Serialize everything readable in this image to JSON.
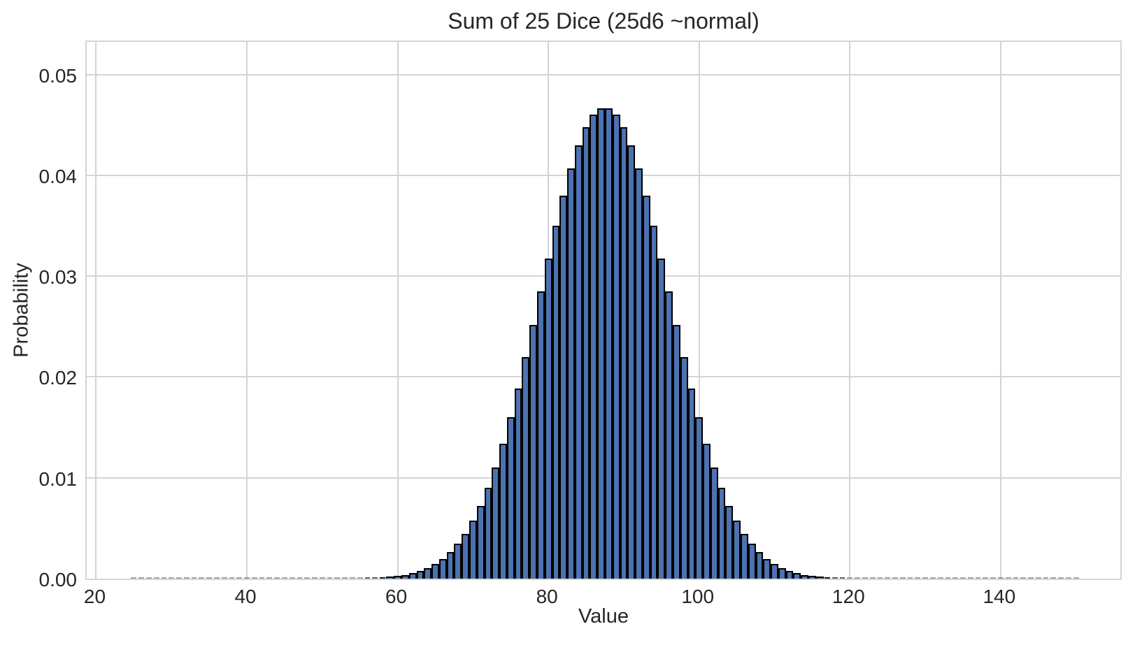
{
  "chart_data": {
    "type": "bar",
    "subtype": "histogram",
    "title": "Sum of 25 Dice (25d6 ~normal)",
    "xlabel": "Value",
    "ylabel": "Probability",
    "x_start": 25,
    "x_end": 150,
    "values": [
      0,
      0,
      0,
      0,
      0,
      0,
      0,
      0,
      0,
      0,
      0,
      0,
      0,
      0,
      0,
      0,
      0,
      0,
      0,
      0,
      0,
      0,
      0,
      0,
      0,
      3e-06,
      5e-06,
      8e-06,
      1.33e-05,
      2.12e-05,
      3.34e-05,
      5.18e-05,
      7.93e-05,
      0.00012,
      0.000178,
      0.000262,
      0.000379,
      0.000541,
      0.000762,
      0.001059,
      0.001452,
      0.001963,
      0.002619,
      0.003445,
      0.00447,
      0.005721,
      0.007222,
      0.008994,
      0.011048,
      0.013389,
      0.016001,
      0.018866,
      0.021936,
      0.025159,
      0.028465,
      0.031767,
      0.034968,
      0.037967,
      0.040662,
      0.042955,
      0.044759,
      0.046004,
      0.046639,
      0.046639,
      0.046004,
      0.044759,
      0.042955,
      0.040662,
      0.037967,
      0.034968,
      0.031767,
      0.028465,
      0.025159,
      0.021936,
      0.018866,
      0.016001,
      0.013389,
      0.011048,
      0.008994,
      0.007222,
      0.005721,
      0.00447,
      0.003445,
      0.002619,
      0.001963,
      0.001452,
      0.001059,
      0.000762,
      0.000541,
      0.000379,
      0.000262,
      0.000178,
      0.00012,
      7.93e-05,
      5.18e-05,
      3.34e-05,
      2.12e-05,
      1.33e-05,
      8e-06,
      5e-06,
      3e-06,
      0,
      0,
      0,
      0,
      0,
      0,
      0,
      0,
      0,
      0,
      0,
      0,
      0,
      0,
      0,
      0,
      0,
      0,
      0,
      0,
      0,
      0,
      0,
      0,
      0
    ],
    "xlim": [
      18.75,
      156.25
    ],
    "ylim": [
      0,
      0.0535
    ],
    "xtick_values": [
      20,
      40,
      60,
      80,
      100,
      120,
      140
    ],
    "xtick_labels": [
      "20",
      "40",
      "60",
      "80",
      "100",
      "120",
      "140"
    ],
    "ytick_values": [
      0.0,
      0.01,
      0.02,
      0.03,
      0.04,
      0.05
    ],
    "ytick_labels": [
      "0.00",
      "0.01",
      "0.02",
      "0.03",
      "0.04",
      "0.05"
    ],
    "grid": true,
    "legend": null,
    "colors": {
      "bar_fill": "#4C72B0",
      "bar_edge": "#000000",
      "grid": "#d4d4d4",
      "text": "#262626",
      "background": "#ffffff"
    }
  }
}
